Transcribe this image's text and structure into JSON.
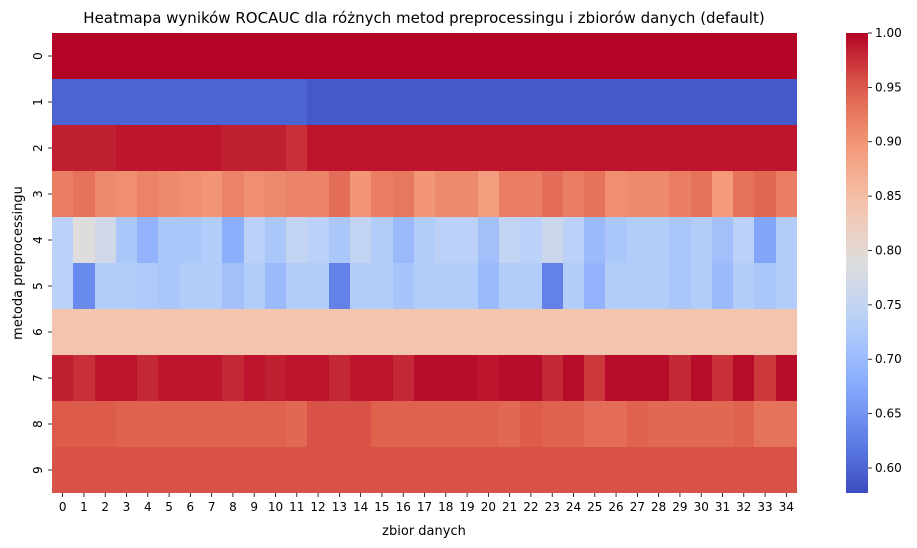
{
  "chart_data": {
    "type": "heatmap",
    "title": "Heatmapa wyników ROCAUC dla różnych metod preprocessingu i zbiorów danych (default)",
    "xlabel": "zbior danych",
    "ylabel": "metoda preprocessingu",
    "x_categories": [
      "0",
      "1",
      "2",
      "3",
      "4",
      "5",
      "6",
      "7",
      "8",
      "9",
      "10",
      "11",
      "12",
      "13",
      "14",
      "15",
      "16",
      "17",
      "18",
      "19",
      "20",
      "21",
      "22",
      "23",
      "24",
      "25",
      "26",
      "27",
      "28",
      "29",
      "30",
      "31",
      "32",
      "33",
      "34"
    ],
    "y_categories": [
      "0",
      "1",
      "2",
      "3",
      "4",
      "5",
      "6",
      "7",
      "8",
      "9"
    ],
    "colormap": "coolwarm",
    "vmin": 0.577,
    "vmax": 1.0,
    "colorbar_ticks": [
      "0.60",
      "0.65",
      "0.70",
      "0.75",
      "0.80",
      "0.85",
      "0.90",
      "0.95",
      "1.00"
    ],
    "values": [
      [
        1.0,
        1.0,
        1.0,
        1.0,
        1.0,
        1.0,
        1.0,
        1.0,
        1.0,
        1.0,
        1.0,
        1.0,
        1.0,
        1.0,
        1.0,
        1.0,
        1.0,
        1.0,
        1.0,
        1.0,
        1.0,
        1.0,
        1.0,
        1.0,
        1.0,
        1.0,
        1.0,
        1.0,
        1.0,
        1.0,
        1.0,
        1.0,
        1.0,
        1.0,
        1.0
      ],
      [
        0.6,
        0.6,
        0.6,
        0.6,
        0.6,
        0.6,
        0.6,
        0.6,
        0.6,
        0.6,
        0.6,
        0.6,
        0.59,
        0.59,
        0.59,
        0.59,
        0.59,
        0.59,
        0.59,
        0.59,
        0.59,
        0.59,
        0.59,
        0.59,
        0.59,
        0.59,
        0.59,
        0.59,
        0.59,
        0.59,
        0.59,
        0.59,
        0.59,
        0.59,
        0.59
      ],
      [
        0.985,
        0.985,
        0.985,
        0.99,
        0.99,
        0.99,
        0.99,
        0.99,
        0.985,
        0.985,
        0.985,
        0.975,
        0.99,
        0.99,
        0.99,
        0.99,
        0.99,
        0.99,
        0.99,
        0.99,
        0.99,
        0.99,
        0.99,
        0.99,
        0.99,
        0.99,
        0.99,
        0.99,
        0.99,
        0.99,
        0.99,
        0.99,
        0.99,
        0.99,
        0.99
      ],
      [
        0.92,
        0.93,
        0.91,
        0.905,
        0.915,
        0.91,
        0.905,
        0.9,
        0.915,
        0.905,
        0.91,
        0.915,
        0.915,
        0.935,
        0.9,
        0.92,
        0.925,
        0.9,
        0.91,
        0.91,
        0.89,
        0.92,
        0.92,
        0.935,
        0.92,
        0.93,
        0.905,
        0.91,
        0.91,
        0.92,
        0.93,
        0.895,
        0.93,
        0.94,
        0.92
      ],
      [
        0.74,
        0.79,
        0.77,
        0.72,
        0.69,
        0.72,
        0.72,
        0.73,
        0.68,
        0.74,
        0.72,
        0.75,
        0.74,
        0.72,
        0.75,
        0.73,
        0.7,
        0.73,
        0.74,
        0.74,
        0.71,
        0.75,
        0.74,
        0.76,
        0.74,
        0.7,
        0.72,
        0.73,
        0.73,
        0.72,
        0.73,
        0.71,
        0.74,
        0.67,
        0.73
      ],
      [
        0.74,
        0.64,
        0.73,
        0.73,
        0.725,
        0.72,
        0.73,
        0.73,
        0.71,
        0.73,
        0.7,
        0.73,
        0.73,
        0.63,
        0.73,
        0.73,
        0.715,
        0.73,
        0.73,
        0.73,
        0.7,
        0.73,
        0.73,
        0.63,
        0.73,
        0.69,
        0.73,
        0.73,
        0.73,
        0.72,
        0.73,
        0.7,
        0.73,
        0.72,
        0.73
      ],
      [
        0.84,
        0.84,
        0.84,
        0.84,
        0.84,
        0.84,
        0.84,
        0.84,
        0.84,
        0.84,
        0.84,
        0.84,
        0.84,
        0.84,
        0.84,
        0.84,
        0.84,
        0.84,
        0.84,
        0.84,
        0.84,
        0.84,
        0.84,
        0.84,
        0.84,
        0.84,
        0.84,
        0.84,
        0.84,
        0.84,
        0.84,
        0.84,
        0.84,
        0.84,
        0.84
      ],
      [
        0.985,
        0.975,
        0.99,
        0.99,
        0.98,
        0.99,
        0.99,
        0.99,
        0.98,
        0.99,
        0.985,
        0.99,
        0.99,
        0.98,
        0.99,
        0.99,
        0.98,
        0.995,
        0.995,
        0.995,
        0.99,
        0.995,
        0.995,
        0.98,
        0.995,
        0.97,
        0.995,
        0.995,
        0.995,
        0.98,
        0.995,
        0.975,
        0.995,
        0.97,
        0.995
      ],
      [
        0.95,
        0.95,
        0.95,
        0.945,
        0.945,
        0.945,
        0.945,
        0.945,
        0.945,
        0.945,
        0.945,
        0.94,
        0.955,
        0.955,
        0.955,
        0.945,
        0.945,
        0.945,
        0.945,
        0.945,
        0.945,
        0.94,
        0.95,
        0.945,
        0.945,
        0.935,
        0.935,
        0.945,
        0.94,
        0.94,
        0.94,
        0.94,
        0.945,
        0.93,
        0.93
      ],
      [
        0.955,
        0.955,
        0.955,
        0.955,
        0.955,
        0.955,
        0.955,
        0.955,
        0.955,
        0.955,
        0.955,
        0.955,
        0.955,
        0.955,
        0.955,
        0.955,
        0.955,
        0.955,
        0.955,
        0.955,
        0.955,
        0.955,
        0.955,
        0.955,
        0.955,
        0.955,
        0.955,
        0.955,
        0.955,
        0.955,
        0.955,
        0.955,
        0.955,
        0.955,
        0.955
      ]
    ]
  }
}
